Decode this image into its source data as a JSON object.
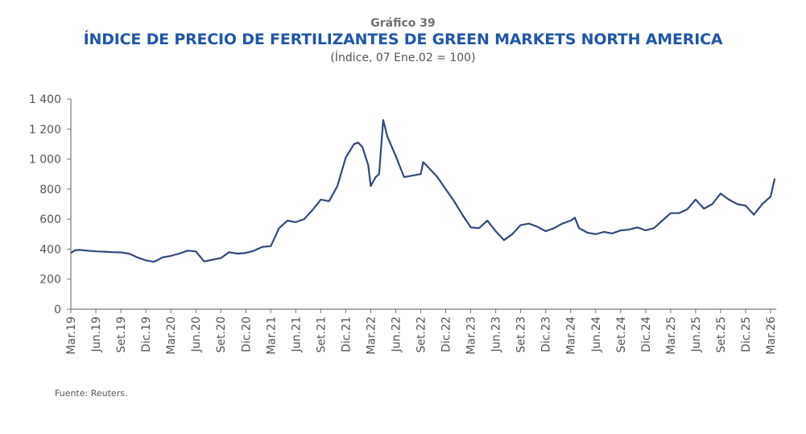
{
  "chart_data": {
    "type": "line",
    "number": "Gráfico 39",
    "title": "ÍNDICE DE PRECIO DE FERTILIZANTES DE GREEN MARKETS NORTH AMERICA",
    "subtitle": "(Índice, 07 Ene.02 = 100)",
    "source": "Fuente: Reuters.",
    "xlabel": "",
    "ylabel": "",
    "ylim": [
      0,
      1400
    ],
    "yticks": [
      0,
      200,
      400,
      600,
      800,
      1000,
      1200,
      1400
    ],
    "ytick_labels": [
      "0",
      "200",
      "400",
      "600",
      "800",
      "1 000",
      "1 200",
      "1 400"
    ],
    "xticks_months_from_start": [
      0,
      3,
      6,
      9,
      12,
      15,
      18,
      21,
      24,
      27,
      30,
      33,
      36,
      39,
      42,
      45,
      48,
      51,
      54,
      57,
      60,
      63,
      66,
      69,
      72,
      75,
      78,
      81,
      84
    ],
    "xtick_labels": [
      "Mar.19",
      "Jun.19",
      "Set.19",
      "Dic.19",
      "Mar.20",
      "Jun.20",
      "Set.20",
      "Dic.20",
      "Mar.21",
      "Jun.21",
      "Set.21",
      "Dic.21",
      "Mar.22",
      "Jun.22",
      "Set.22",
      "Dic.22",
      "Mar.23",
      "Jun.23",
      "Set.23",
      "Dic.23",
      "Mar.24",
      "Jun.24",
      "Set.24",
      "Dic.24",
      "Mar.25",
      "Jun.25",
      "Set.25",
      "Dic.25",
      "Mar.26"
    ],
    "grid": false,
    "color": "#2e4a7d",
    "series": [
      {
        "name": "Índice",
        "x_months_from_start": [
          0,
          0.5,
          1,
          2,
          3,
          4,
          5,
          6,
          7,
          8,
          9,
          10,
          11,
          12,
          13,
          14,
          15,
          16,
          17,
          18,
          19,
          20,
          21,
          22,
          23,
          24,
          25,
          26,
          27,
          28,
          29,
          30,
          31,
          32,
          33,
          34,
          34.5,
          35,
          35.7,
          36,
          36.6,
          37,
          37.5,
          38,
          39,
          40,
          41,
          42,
          42.3,
          43,
          44,
          45,
          46,
          47,
          48,
          49,
          50,
          51,
          52,
          53,
          54,
          55,
          56,
          57,
          58,
          59,
          60,
          60.5,
          61,
          62,
          63,
          64,
          65,
          66,
          67,
          68,
          69,
          70,
          71,
          72,
          73,
          74,
          75,
          76,
          77,
          78,
          79,
          80,
          81,
          82,
          83,
          84,
          84.5
        ],
        "values": [
          375,
          392,
          395,
          390,
          385,
          383,
          380,
          378,
          370,
          345,
          325,
          316,
          345,
          355,
          370,
          390,
          385,
          318,
          330,
          340,
          380,
          370,
          375,
          390,
          415,
          420,
          540,
          590,
          580,
          600,
          660,
          730,
          720,
          820,
          1010,
          1100,
          1110,
          1080,
          960,
          820,
          880,
          900,
          1260,
          1150,
          1020,
          880,
          890,
          900,
          980,
          940,
          880,
          800,
          720,
          630,
          545,
          540,
          590,
          520,
          460,
          500,
          560,
          570,
          550,
          520,
          540,
          570,
          590,
          610,
          540,
          510,
          500,
          515,
          505,
          525,
          530,
          545,
          525,
          540,
          590,
          640,
          640,
          665,
          730,
          670,
          700,
          770,
          730,
          700,
          690,
          630,
          700,
          750,
          870
        ]
      }
    ]
  }
}
